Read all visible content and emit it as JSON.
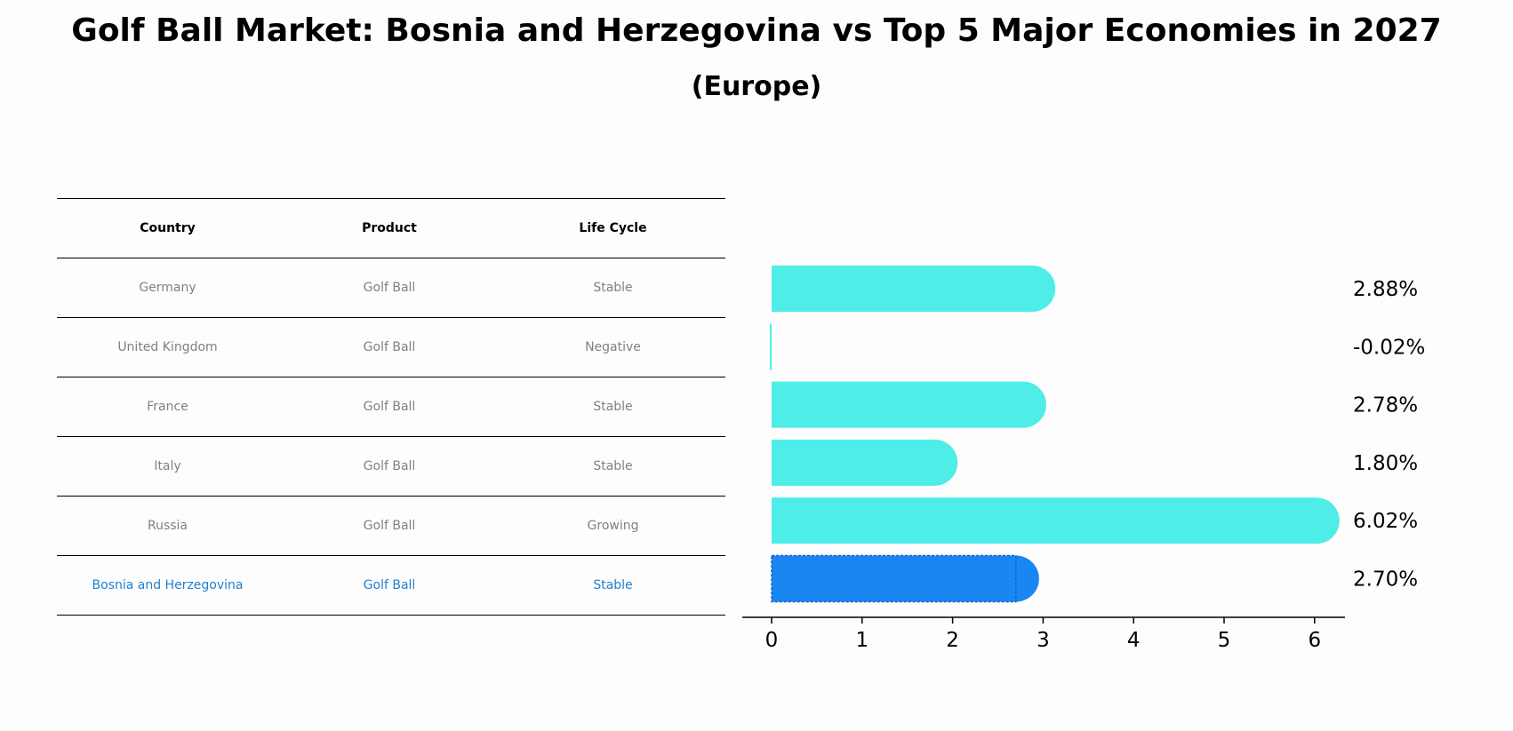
{
  "title": "Golf Ball Market: Bosnia and Herzegovina vs Top 5 Major Economies in 2027",
  "subtitle": "(Europe)",
  "table": {
    "headers": [
      "Country",
      "Product",
      "Life Cycle"
    ],
    "rows": [
      [
        "Germany",
        "Golf Ball",
        "Stable"
      ],
      [
        "United Kingdom",
        "Golf Ball",
        "Negative"
      ],
      [
        "France",
        "Golf Ball",
        "Stable"
      ],
      [
        "Italy",
        "Golf Ball",
        "Stable"
      ],
      [
        "Russia",
        "Golf Ball",
        "Growing"
      ],
      [
        "Bosnia and Herzegovina",
        "Golf Ball",
        "Stable"
      ]
    ]
  },
  "colors": {
    "bar": "#4EEDE8",
    "highlight_bar": "#1A86F2",
    "highlight_text": "#1f7fd0",
    "muted_text": "#808080"
  },
  "chart_data": {
    "type": "bar",
    "orientation": "horizontal",
    "categories": [
      "Germany",
      "United Kingdom",
      "France",
      "Italy",
      "Russia",
      "Bosnia and Herzegovina"
    ],
    "values": [
      2.88,
      -0.02,
      2.78,
      1.8,
      6.02,
      2.7
    ],
    "value_labels": [
      "2.88%",
      "-0.02%",
      "2.78%",
      "1.80%",
      "6.02%",
      "2.70%"
    ],
    "highlight_index": 5,
    "xlim": [
      -0.3,
      6.3
    ],
    "xticks": [
      0,
      1,
      2,
      3,
      4,
      5,
      6
    ],
    "xlabel": "",
    "ylabel": "",
    "grid": false
  }
}
